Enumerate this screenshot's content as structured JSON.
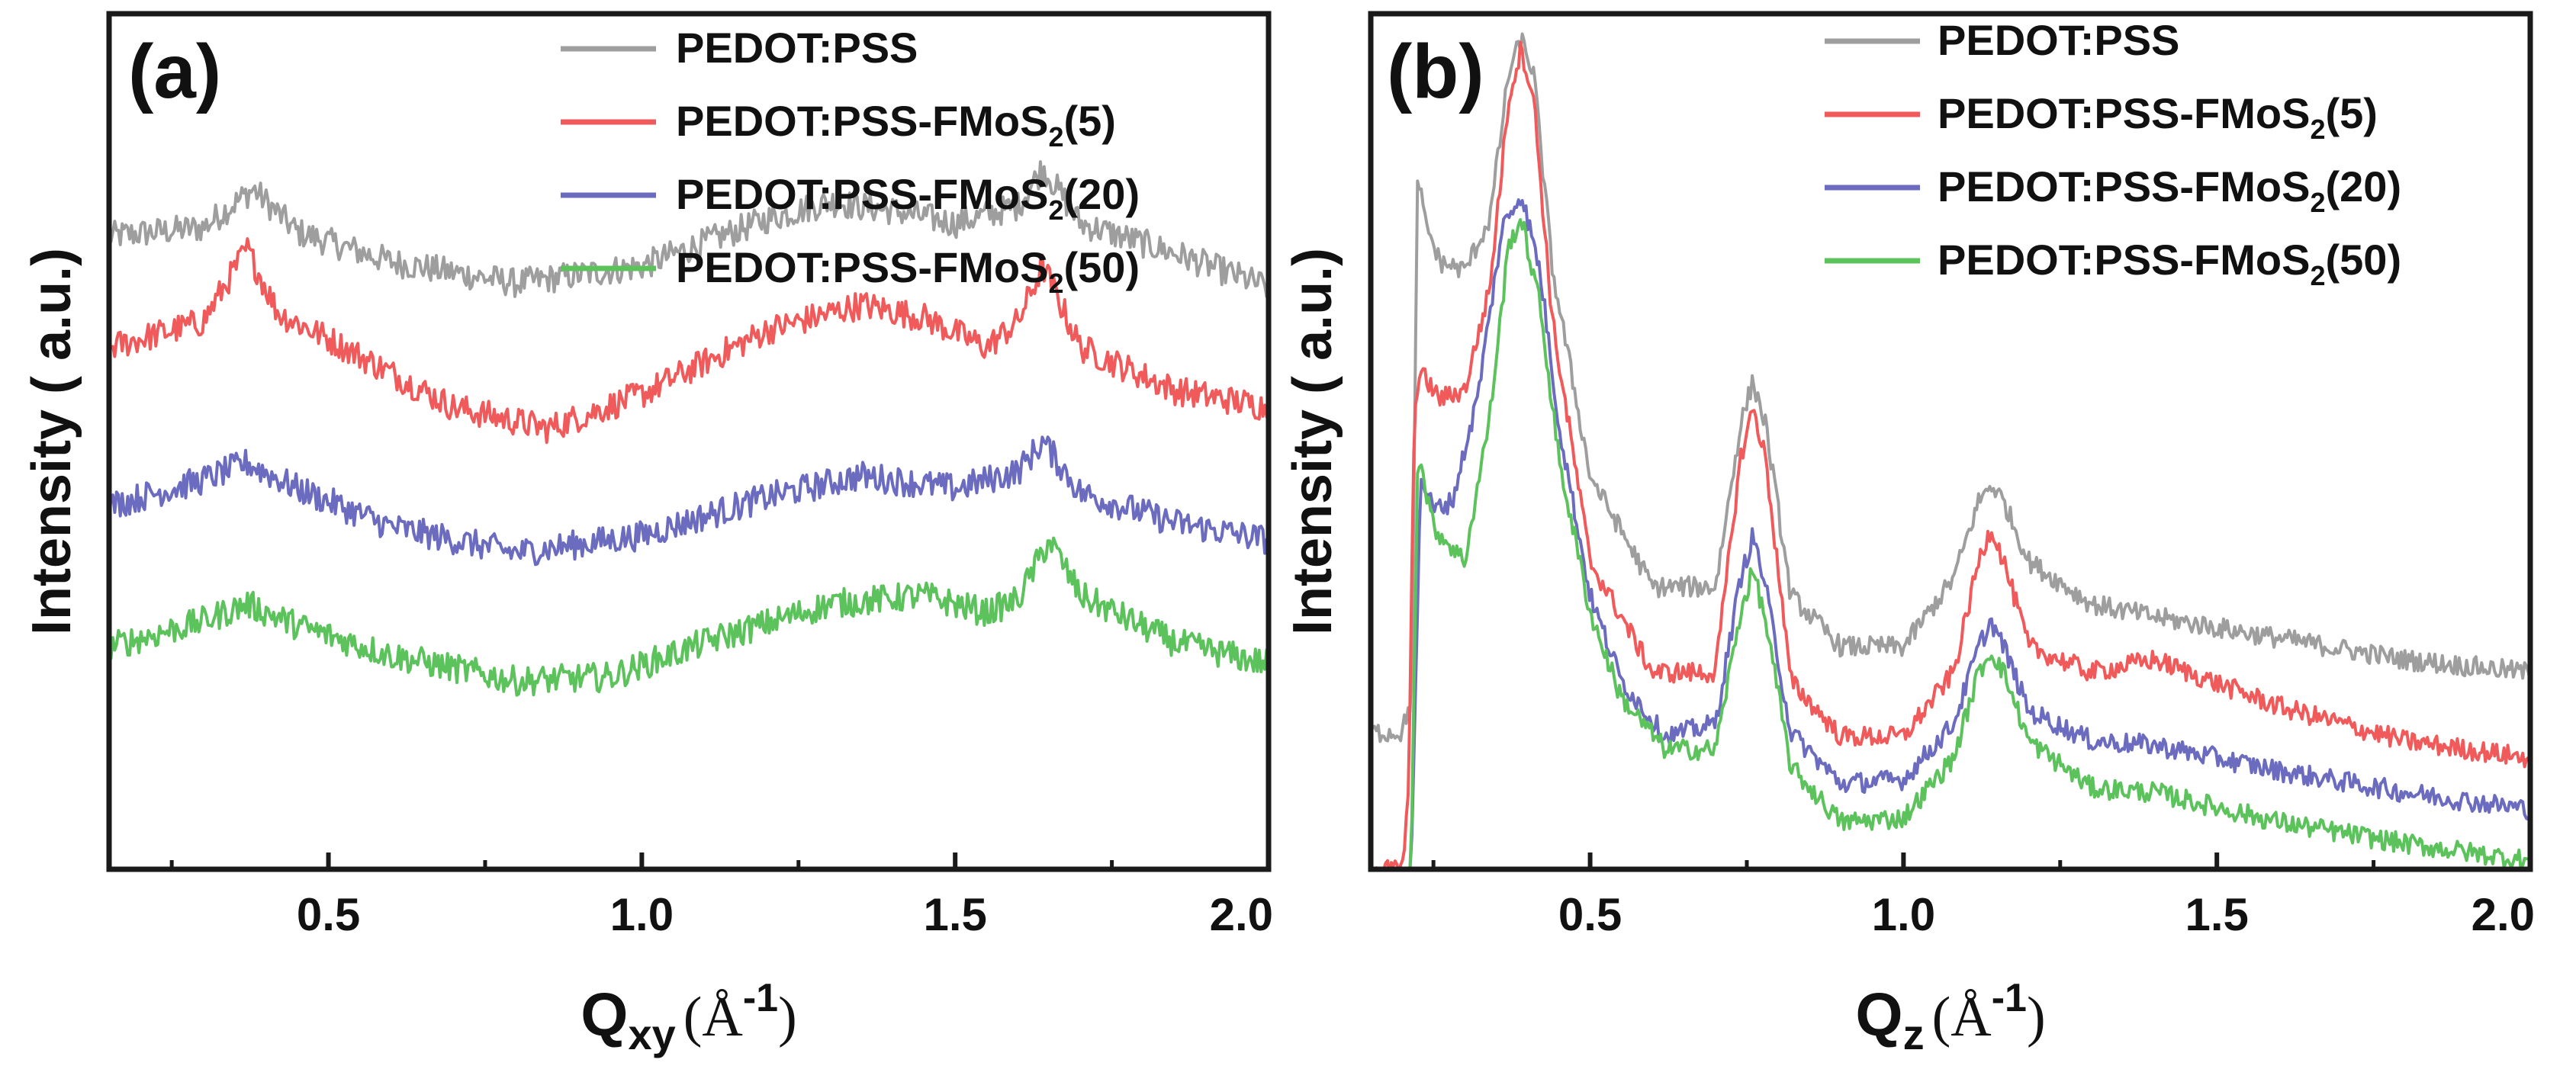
{
  "figure": {
    "panels": [
      {
        "panel_label": "(a)",
        "xlabel_main": "Q",
        "xlabel_sub": "xy",
        "xlabel_unit_open": "(Å",
        "xlabel_unit_sup": "-1",
        "xlabel_unit_close": ")",
        "ylabel": "Intensity ( a.u.)"
      },
      {
        "panel_label": "(b)",
        "xlabel_main": "Q",
        "xlabel_sub": "z",
        "xlabel_unit_open": "(Å",
        "xlabel_unit_sup": "-1",
        "xlabel_unit_close": ")",
        "ylabel": "Intensity ( a.u.)"
      }
    ]
  },
  "chart_data": [
    {
      "type": "line",
      "panel": "(a)",
      "title": "",
      "xlabel": "Qxy (Å-1)",
      "ylabel": "Intensity ( a.u.)",
      "xlim": [
        0.15,
        2.0
      ],
      "ylim": [
        0,
        10
      ],
      "xticks": [
        0.5,
        1.0,
        1.5,
        2.0
      ],
      "xtick_labels": [
        "0.5",
        "1.0",
        "1.5",
        "2.0"
      ],
      "yticks_shown": false,
      "legend_position": "top-right",
      "noise": 0.17,
      "series": [
        {
          "name": "PEDOT:PSS",
          "legend_main": "PEDOT:PSS",
          "legend_sub": "",
          "legend_tail": "",
          "color": "#9e9e9e",
          "x": [
            0.15,
            0.3,
            0.38,
            0.45,
            0.6,
            0.8,
            1.0,
            1.2,
            1.3,
            1.4,
            1.5,
            1.6,
            1.64,
            1.7,
            1.85,
            2.0
          ],
          "y": [
            7.4,
            7.5,
            7.95,
            7.45,
            7.1,
            6.85,
            7.05,
            7.6,
            7.8,
            7.7,
            7.55,
            7.75,
            8.2,
            7.55,
            7.2,
            6.8
          ]
        },
        {
          "name": "PEDOT:PSS-FMoS2(5)",
          "legend_main": "PEDOT:PSS-FMoS",
          "legend_sub": "2",
          "legend_tail": "(5)",
          "color": "#f05a5a",
          "x": [
            0.15,
            0.3,
            0.37,
            0.42,
            0.5,
            0.7,
            0.85,
            1.0,
            1.2,
            1.35,
            1.45,
            1.55,
            1.6,
            1.64,
            1.7,
            1.85,
            2.0
          ],
          "y": [
            6.1,
            6.4,
            7.25,
            6.5,
            6.2,
            5.4,
            5.15,
            5.55,
            6.3,
            6.6,
            6.45,
            6.1,
            6.4,
            7.05,
            6.1,
            5.6,
            5.4
          ]
        },
        {
          "name": "PEDOT:PSS-FMoS2(20)",
          "legend_main": "PEDOT:PSS-FMoS",
          "legend_sub": "2",
          "legend_tail": "(20)",
          "color": "#6b6bbf",
          "x": [
            0.15,
            0.3,
            0.37,
            0.45,
            0.6,
            0.8,
            1.0,
            1.2,
            1.35,
            1.5,
            1.6,
            1.64,
            1.7,
            1.85,
            2.0
          ],
          "y": [
            4.25,
            4.55,
            4.75,
            4.45,
            4.0,
            3.7,
            3.9,
            4.35,
            4.6,
            4.45,
            4.65,
            5.0,
            4.4,
            4.05,
            3.85
          ]
        },
        {
          "name": "PEDOT:PSS-FMoS2(50)",
          "legend_main": "PEDOT:PSS-FMoS",
          "legend_sub": "2",
          "legend_tail": "(50)",
          "color": "#5cc25c",
          "x": [
            0.15,
            0.3,
            0.37,
            0.45,
            0.6,
            0.8,
            0.95,
            1.1,
            1.3,
            1.45,
            1.55,
            1.6,
            1.65,
            1.7,
            1.85,
            2.0
          ],
          "y": [
            2.6,
            2.9,
            3.1,
            2.85,
            2.5,
            2.2,
            2.25,
            2.65,
            3.1,
            3.2,
            3.0,
            3.15,
            3.85,
            3.2,
            2.65,
            2.4
          ]
        }
      ]
    },
    {
      "type": "line",
      "panel": "(b)",
      "title": "",
      "xlabel": "Qz (Å-1)",
      "ylabel": "Intensity ( a.u.)",
      "xlim": [
        0.15,
        2.0
      ],
      "ylim": [
        0,
        10
      ],
      "xticks": [
        0.5,
        1.0,
        1.5,
        2.0
      ],
      "xtick_labels": [
        "0.5",
        "1.0",
        "1.5",
        "2.0"
      ],
      "yticks_shown": false,
      "legend_position": "top-right",
      "noise": 0.12,
      "series": [
        {
          "name": "PEDOT:PSS",
          "legend_main": "PEDOT:PSS",
          "legend_sub": "",
          "legend_tail": "",
          "color": "#9e9e9e",
          "x": [
            0.15,
            0.2,
            0.215,
            0.225,
            0.235,
            0.26,
            0.3,
            0.34,
            0.37,
            0.39,
            0.41,
            0.44,
            0.5,
            0.6,
            0.7,
            0.74,
            0.76,
            0.78,
            0.82,
            0.9,
            1.0,
            1.08,
            1.12,
            1.14,
            1.16,
            1.2,
            1.3,
            1.4,
            1.6,
            1.8,
            2.0
          ],
          "y": [
            1.6,
            1.6,
            2.0,
            8.2,
            7.6,
            7.1,
            7.0,
            7.6,
            9.3,
            9.7,
            9.3,
            7.0,
            4.6,
            3.3,
            3.3,
            5.2,
            5.7,
            5.2,
            3.2,
            2.6,
            2.6,
            3.4,
            4.3,
            4.5,
            4.3,
            3.6,
            3.1,
            2.95,
            2.7,
            2.45,
            2.3
          ]
        },
        {
          "name": "PEDOT:PSS-FMoS2(5)",
          "legend_main": "PEDOT:PSS-FMoS",
          "legend_sub": "2",
          "legend_tail": "(5)",
          "color": "#f05a5a",
          "x": [
            0.15,
            0.2,
            0.21,
            0.22,
            0.23,
            0.26,
            0.3,
            0.34,
            0.37,
            0.39,
            0.41,
            0.44,
            0.5,
            0.6,
            0.7,
            0.74,
            0.76,
            0.78,
            0.82,
            0.9,
            1.0,
            1.08,
            1.12,
            1.14,
            1.16,
            1.2,
            1.3,
            1.4,
            1.6,
            1.8,
            2.0
          ],
          "y": [
            0.0,
            0.0,
            0.8,
            5.5,
            5.8,
            5.5,
            5.6,
            6.8,
            9.0,
            9.6,
            9.0,
            6.4,
            3.6,
            2.3,
            2.3,
            4.8,
            5.4,
            4.8,
            2.2,
            1.55,
            1.55,
            2.3,
            3.6,
            4.0,
            3.6,
            2.6,
            2.3,
            2.45,
            1.9,
            1.5,
            1.3
          ]
        },
        {
          "name": "PEDOT:PSS-FMoS2(20)",
          "legend_main": "PEDOT:PSS-FMoS",
          "legend_sub": "2",
          "legend_tail": "(20)",
          "color": "#6b6bbf",
          "x": [
            0.15,
            0.205,
            0.215,
            0.23,
            0.25,
            0.28,
            0.32,
            0.36,
            0.39,
            0.42,
            0.45,
            0.5,
            0.55,
            0.62,
            0.7,
            0.74,
            0.76,
            0.78,
            0.82,
            0.9,
            1.0,
            1.08,
            1.12,
            1.14,
            1.16,
            1.2,
            1.3,
            1.4,
            1.6,
            1.8,
            2.0
          ],
          "y": [
            -0.5,
            -0.5,
            0.3,
            4.6,
            4.2,
            4.3,
            5.5,
            7.5,
            7.9,
            7.0,
            5.2,
            3.2,
            2.2,
            1.55,
            1.7,
            3.4,
            3.9,
            3.3,
            1.6,
            1.0,
            1.05,
            1.7,
            2.6,
            2.9,
            2.6,
            1.85,
            1.5,
            1.45,
            1.15,
            0.9,
            0.7
          ]
        },
        {
          "name": "PEDOT:PSS-FMoS2(50)",
          "legend_main": "PEDOT:PSS-FMoS",
          "legend_sub": "2",
          "legend_tail": "(50)",
          "color": "#5cc25c",
          "x": [
            0.15,
            0.205,
            0.215,
            0.225,
            0.25,
            0.3,
            0.34,
            0.37,
            0.39,
            0.42,
            0.45,
            0.5,
            0.55,
            0.62,
            0.7,
            0.74,
            0.76,
            0.78,
            0.82,
            0.9,
            1.0,
            1.08,
            1.12,
            1.14,
            1.16,
            1.2,
            1.3,
            1.4,
            1.6,
            1.8,
            2.0
          ],
          "y": [
            -0.5,
            -0.5,
            0.3,
            4.9,
            4.0,
            3.6,
            5.3,
            7.3,
            7.6,
            6.6,
            4.8,
            3.0,
            2.0,
            1.4,
            1.4,
            3.0,
            3.5,
            2.9,
            1.2,
            0.55,
            0.6,
            1.3,
            2.3,
            2.55,
            2.3,
            1.5,
            0.95,
            0.9,
            0.55,
            0.3,
            0.1
          ]
        }
      ]
    }
  ]
}
